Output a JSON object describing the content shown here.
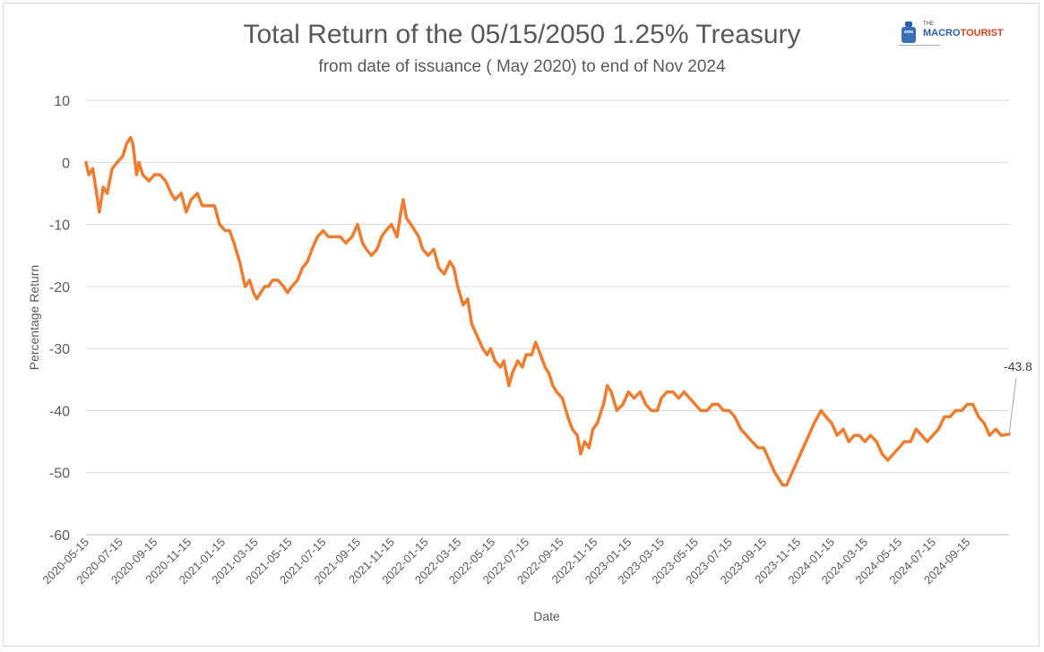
{
  "header": {
    "title": "Total Return of the 05/15/2050 1.25% Treasury",
    "subtitle": "from date of issuance ( May 2020) to end of Nov 2024"
  },
  "logo": {
    "small_text": "THE",
    "word1": "MACRO",
    "word2": "TOURIST",
    "colors": {
      "macro": "#2e5ea8",
      "tourist": "#d6451f"
    }
  },
  "chart_data": {
    "type": "line",
    "title": "Total Return of the 05/15/2050 1.25% Treasury",
    "subtitle": "from date of issuance ( May 2020) to end of Nov 2024",
    "xlabel": "Date",
    "ylabel": "Percentage Return",
    "ylim": [
      -60,
      10
    ],
    "yticks": [
      10,
      0,
      -10,
      -20,
      -30,
      -40,
      -50,
      -60
    ],
    "xlim": [
      "2020-05-15",
      "2024-11-29"
    ],
    "xticks": [
      "2020-05-15",
      "2020-07-15",
      "2020-09-15",
      "2020-11-15",
      "2021-01-15",
      "2021-03-15",
      "2021-05-15",
      "2021-07-15",
      "2021-09-15",
      "2021-11-15",
      "2022-01-15",
      "2022-03-15",
      "2022-05-15",
      "2022-07-15",
      "2022-09-15",
      "2022-11-15",
      "2023-01-15",
      "2023-03-15",
      "2023-05-15",
      "2023-07-15",
      "2023-09-15",
      "2023-11-15",
      "2024-01-15",
      "2024-03-15",
      "2024-05-15",
      "2024-07-15",
      "2024-09-15"
    ],
    "grid": true,
    "line_color": "#ed7d31",
    "end_label": "-43.8",
    "series": [
      {
        "name": "",
        "points": [
          [
            "2020-05-15",
            0
          ],
          [
            "2020-05-20",
            -2
          ],
          [
            "2020-05-27",
            -1
          ],
          [
            "2020-06-03",
            -5
          ],
          [
            "2020-06-08",
            -8
          ],
          [
            "2020-06-15",
            -4
          ],
          [
            "2020-06-22",
            -5
          ],
          [
            "2020-07-01",
            -1
          ],
          [
            "2020-07-10",
            0
          ],
          [
            "2020-07-20",
            1
          ],
          [
            "2020-07-27",
            3
          ],
          [
            "2020-08-03",
            4
          ],
          [
            "2020-08-07",
            3
          ],
          [
            "2020-08-14",
            -2
          ],
          [
            "2020-08-18",
            0
          ],
          [
            "2020-08-25",
            -2
          ],
          [
            "2020-09-05",
            -3
          ],
          [
            "2020-09-15",
            -2
          ],
          [
            "2020-09-25",
            -2
          ],
          [
            "2020-10-05",
            -3
          ],
          [
            "2020-10-15",
            -5
          ],
          [
            "2020-10-22",
            -6
          ],
          [
            "2020-11-02",
            -5
          ],
          [
            "2020-11-11",
            -8
          ],
          [
            "2020-11-20",
            -6
          ],
          [
            "2020-12-01",
            -5
          ],
          [
            "2020-12-10",
            -7
          ],
          [
            "2020-12-20",
            -7
          ],
          [
            "2021-01-01",
            -7
          ],
          [
            "2021-01-10",
            -10
          ],
          [
            "2021-01-20",
            -11
          ],
          [
            "2021-01-28",
            -11
          ],
          [
            "2021-02-05",
            -13
          ],
          [
            "2021-02-15",
            -16
          ],
          [
            "2021-02-25",
            -20
          ],
          [
            "2021-03-05",
            -19
          ],
          [
            "2021-03-12",
            -21
          ],
          [
            "2021-03-18",
            -22
          ],
          [
            "2021-03-25",
            -21
          ],
          [
            "2021-04-01",
            -20
          ],
          [
            "2021-04-08",
            -20
          ],
          [
            "2021-04-15",
            -19
          ],
          [
            "2021-04-25",
            -19
          ],
          [
            "2021-05-05",
            -20
          ],
          [
            "2021-05-12",
            -21
          ],
          [
            "2021-05-20",
            -20
          ],
          [
            "2021-05-30",
            -19
          ],
          [
            "2021-06-08",
            -17
          ],
          [
            "2021-06-17",
            -16
          ],
          [
            "2021-06-25",
            -14
          ],
          [
            "2021-07-05",
            -12
          ],
          [
            "2021-07-15",
            -11
          ],
          [
            "2021-07-25",
            -12
          ],
          [
            "2021-08-05",
            -12
          ],
          [
            "2021-08-15",
            -12
          ],
          [
            "2021-08-25",
            -13
          ],
          [
            "2021-09-05",
            -12
          ],
          [
            "2021-09-15",
            -10
          ],
          [
            "2021-09-24",
            -13
          ],
          [
            "2021-10-01",
            -14
          ],
          [
            "2021-10-10",
            -15
          ],
          [
            "2021-10-20",
            -14
          ],
          [
            "2021-10-28",
            -12
          ],
          [
            "2021-11-05",
            -11
          ],
          [
            "2021-11-15",
            -10
          ],
          [
            "2021-11-25",
            -12
          ],
          [
            "2021-12-02",
            -8
          ],
          [
            "2021-12-06",
            -6
          ],
          [
            "2021-12-12",
            -9
          ],
          [
            "2021-12-20",
            -10
          ],
          [
            "2022-01-03",
            -12
          ],
          [
            "2022-01-10",
            -14
          ],
          [
            "2022-01-20",
            -15
          ],
          [
            "2022-01-30",
            -14
          ],
          [
            "2022-02-08",
            -17
          ],
          [
            "2022-02-18",
            -18
          ],
          [
            "2022-02-28",
            -16
          ],
          [
            "2022-03-07",
            -17
          ],
          [
            "2022-03-14",
            -20
          ],
          [
            "2022-03-24",
            -23
          ],
          [
            "2022-04-01",
            -22
          ],
          [
            "2022-04-08",
            -26
          ],
          [
            "2022-04-18",
            -28
          ],
          [
            "2022-04-28",
            -30
          ],
          [
            "2022-05-06",
            -31
          ],
          [
            "2022-05-12",
            -30
          ],
          [
            "2022-05-20",
            -32
          ],
          [
            "2022-05-30",
            -33
          ],
          [
            "2022-06-05",
            -32
          ],
          [
            "2022-06-14",
            -36
          ],
          [
            "2022-06-20",
            -34
          ],
          [
            "2022-06-30",
            -32
          ],
          [
            "2022-07-08",
            -33
          ],
          [
            "2022-07-15",
            -31
          ],
          [
            "2022-07-25",
            -31
          ],
          [
            "2022-08-01",
            -29
          ],
          [
            "2022-08-10",
            -31
          ],
          [
            "2022-08-18",
            -33
          ],
          [
            "2022-08-25",
            -34
          ],
          [
            "2022-09-01",
            -36
          ],
          [
            "2022-09-08",
            -37
          ],
          [
            "2022-09-18",
            -38
          ],
          [
            "2022-09-28",
            -41
          ],
          [
            "2022-10-06",
            -43
          ],
          [
            "2022-10-15",
            -44
          ],
          [
            "2022-10-21",
            -47
          ],
          [
            "2022-10-28",
            -45
          ],
          [
            "2022-11-05",
            -46
          ],
          [
            "2022-11-12",
            -43
          ],
          [
            "2022-11-20",
            -42
          ],
          [
            "2022-12-01",
            -39
          ],
          [
            "2022-12-08",
            -36
          ],
          [
            "2022-12-15",
            -37
          ],
          [
            "2022-12-25",
            -40
          ],
          [
            "2023-01-05",
            -39
          ],
          [
            "2023-01-15",
            -37
          ],
          [
            "2023-01-25",
            -38
          ],
          [
            "2023-02-05",
            -37
          ],
          [
            "2023-02-15",
            -39
          ],
          [
            "2023-02-25",
            -40
          ],
          [
            "2023-03-08",
            -40
          ],
          [
            "2023-03-15",
            -38
          ],
          [
            "2023-03-25",
            -37
          ],
          [
            "2023-04-05",
            -37
          ],
          [
            "2023-04-15",
            -38
          ],
          [
            "2023-04-25",
            -37
          ],
          [
            "2023-05-05",
            -38
          ],
          [
            "2023-05-15",
            -39
          ],
          [
            "2023-05-25",
            -40
          ],
          [
            "2023-06-05",
            -40
          ],
          [
            "2023-06-15",
            -39
          ],
          [
            "2023-06-25",
            -39
          ],
          [
            "2023-07-05",
            -40
          ],
          [
            "2023-07-15",
            -40
          ],
          [
            "2023-07-25",
            -41
          ],
          [
            "2023-08-05",
            -43
          ],
          [
            "2023-08-15",
            -44
          ],
          [
            "2023-08-25",
            -45
          ],
          [
            "2023-09-05",
            -46
          ],
          [
            "2023-09-15",
            -46
          ],
          [
            "2023-09-25",
            -48
          ],
          [
            "2023-10-05",
            -50
          ],
          [
            "2023-10-12",
            -51
          ],
          [
            "2023-10-19",
            -52
          ],
          [
            "2023-10-26",
            -52
          ],
          [
            "2023-11-05",
            -50
          ],
          [
            "2023-11-15",
            -48
          ],
          [
            "2023-11-25",
            -46
          ],
          [
            "2023-12-05",
            -44
          ],
          [
            "2023-12-15",
            -42
          ],
          [
            "2023-12-27",
            -40
          ],
          [
            "2024-01-05",
            -41
          ],
          [
            "2024-01-15",
            -42
          ],
          [
            "2024-01-25",
            -44
          ],
          [
            "2024-02-05",
            -43
          ],
          [
            "2024-02-15",
            -45
          ],
          [
            "2024-02-25",
            -44
          ],
          [
            "2024-03-05",
            -44
          ],
          [
            "2024-03-15",
            -45
          ],
          [
            "2024-03-25",
            -44
          ],
          [
            "2024-04-05",
            -45
          ],
          [
            "2024-04-15",
            -47
          ],
          [
            "2024-04-25",
            -48
          ],
          [
            "2024-05-05",
            -47
          ],
          [
            "2024-05-15",
            -46
          ],
          [
            "2024-05-25",
            -45
          ],
          [
            "2024-06-05",
            -45
          ],
          [
            "2024-06-15",
            -43
          ],
          [
            "2024-06-25",
            -44
          ],
          [
            "2024-07-05",
            -45
          ],
          [
            "2024-07-15",
            -44
          ],
          [
            "2024-07-25",
            -43
          ],
          [
            "2024-08-05",
            -41
          ],
          [
            "2024-08-15",
            -41
          ],
          [
            "2024-08-25",
            -40
          ],
          [
            "2024-09-05",
            -40
          ],
          [
            "2024-09-15",
            -39
          ],
          [
            "2024-09-25",
            -39
          ],
          [
            "2024-10-05",
            -41
          ],
          [
            "2024-10-15",
            -42
          ],
          [
            "2024-10-25",
            -44
          ],
          [
            "2024-11-05",
            -43
          ],
          [
            "2024-11-15",
            -44
          ],
          [
            "2024-11-29",
            -43.8
          ]
        ]
      }
    ]
  }
}
